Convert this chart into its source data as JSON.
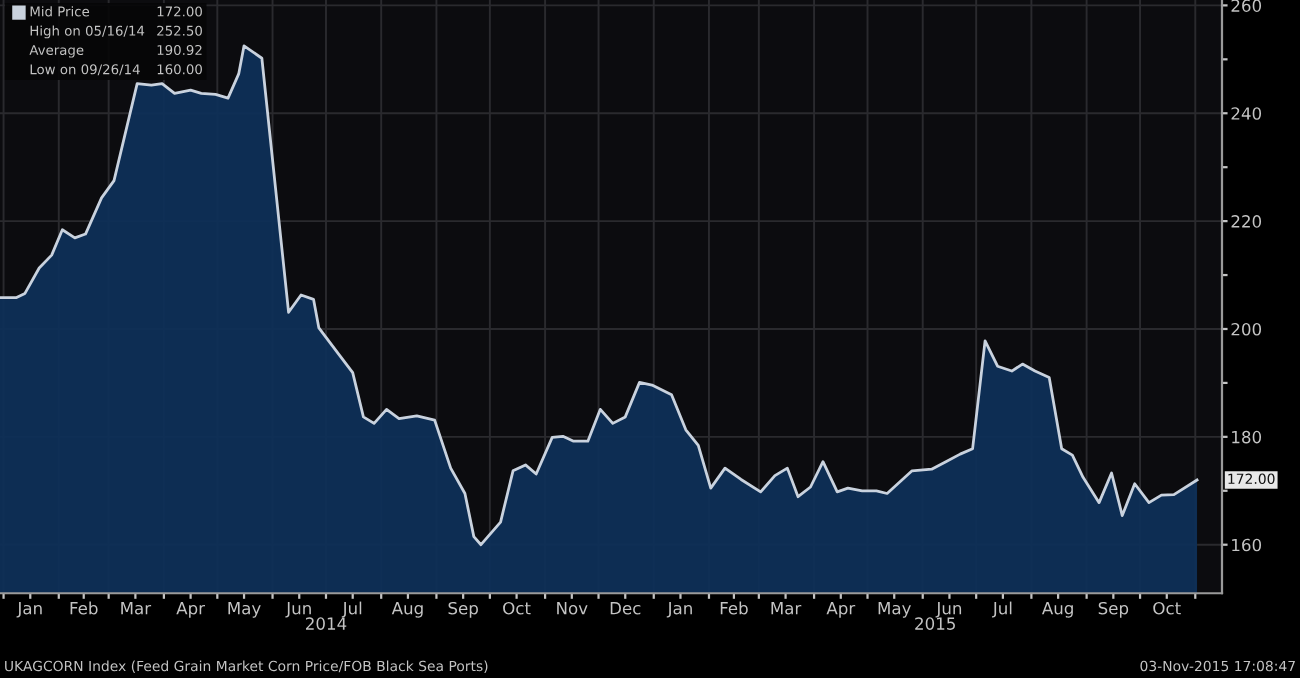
{
  "chart_data": {
    "type": "area",
    "x": [
      "2013-12-30",
      "2014-01-08",
      "2014-01-13",
      "2014-01-21",
      "2014-01-28",
      "2014-02-03",
      "2014-02-10",
      "2014-02-16",
      "2014-02-25",
      "2014-03-04",
      "2014-03-17",
      "2014-03-25",
      "2014-03-31",
      "2014-04-07",
      "2014-04-16",
      "2014-04-22",
      "2014-04-30",
      "2014-05-07",
      "2014-05-13",
      "2014-05-16",
      "2014-05-26",
      "2014-06-10",
      "2014-06-17",
      "2014-06-24",
      "2014-06-27",
      "2014-07-08",
      "2014-07-16",
      "2014-07-22",
      "2014-07-28",
      "2014-08-04",
      "2014-08-11",
      "2014-08-21",
      "2014-08-31",
      "2014-09-09",
      "2014-09-17",
      "2014-09-22",
      "2014-09-26",
      "2014-10-07",
      "2014-10-14",
      "2014-10-21",
      "2014-10-27",
      "2014-11-05",
      "2014-11-11",
      "2014-11-17",
      "2014-11-25",
      "2014-12-02",
      "2014-12-09",
      "2014-12-16",
      "2014-12-24",
      "2014-12-31",
      "2015-01-11",
      "2015-01-19",
      "2015-01-26",
      "2015-02-02",
      "2015-02-10",
      "2015-02-19",
      "2015-03-02",
      "2015-03-10",
      "2015-03-17",
      "2015-03-23",
      "2015-03-30",
      "2015-04-06",
      "2015-04-14",
      "2015-04-20",
      "2015-04-28",
      "2015-05-06",
      "2015-05-12",
      "2015-05-20",
      "2015-05-26",
      "2015-06-06",
      "2015-06-14",
      "2015-06-22",
      "2015-06-29",
      "2015-07-06",
      "2015-07-13",
      "2015-07-21",
      "2015-07-27",
      "2015-08-03",
      "2015-08-11",
      "2015-08-18",
      "2015-08-24",
      "2015-08-30",
      "2015-09-08",
      "2015-09-15",
      "2015-09-21",
      "2015-09-28",
      "2015-10-06",
      "2015-10-13",
      "2015-10-20",
      "2015-11-02"
    ],
    "series": [
      {
        "name": "Mid Price",
        "color": "#c9d2de",
        "values": [
          205.8,
          205.8,
          206.6,
          211.3,
          213.7,
          218.4,
          216.9,
          217.6,
          224.3,
          227.5,
          245.5,
          245.2,
          245.5,
          243.7,
          244.3,
          243.7,
          243.5,
          242.8,
          247.3,
          252.5,
          250.2,
          203.1,
          206.3,
          205.5,
          200.2,
          195.4,
          191.9,
          183.7,
          182.5,
          185.1,
          183.4,
          183.9,
          183.1,
          174.2,
          169.5,
          161.5,
          160.0,
          164.2,
          173.7,
          174.8,
          173.1,
          179.9,
          180.1,
          179.2,
          179.2,
          185.1,
          182.5,
          183.7,
          190.1,
          189.6,
          187.8,
          181.3,
          178.4,
          170.5,
          174.2,
          172.1,
          169.8,
          172.8,
          174.2,
          168.9,
          170.7,
          175.4,
          169.8,
          170.5,
          170.0,
          170.0,
          169.5,
          171.9,
          173.7,
          174.0,
          175.4,
          176.8,
          177.8,
          197.8,
          193.1,
          192.2,
          193.5,
          192.2,
          191.0,
          177.8,
          176.6,
          172.5,
          167.8,
          173.3,
          165.4,
          171.3,
          167.8,
          169.2,
          169.3,
          172.0
        ]
      }
    ],
    "xlim": [
      "2013-12-30",
      "2015-11-16"
    ],
    "xticks": [
      {
        "value": "2014-01-01",
        "label": null
      },
      {
        "value": "2014-01-16",
        "label": "Jan"
      },
      {
        "value": "2014-02-01",
        "label": null
      },
      {
        "value": "2014-02-15",
        "label": "Feb"
      },
      {
        "value": "2014-03-01",
        "label": null
      },
      {
        "value": "2014-03-16",
        "label": "Mar"
      },
      {
        "value": "2014-04-01",
        "label": null
      },
      {
        "value": "2014-04-16",
        "label": "Apr"
      },
      {
        "value": "2014-05-01",
        "label": null
      },
      {
        "value": "2014-05-16",
        "label": "May"
      },
      {
        "value": "2014-06-01",
        "label": null
      },
      {
        "value": "2014-06-16",
        "label": "Jun"
      },
      {
        "value": "2014-07-01",
        "label": null
      },
      {
        "value": "2014-07-16",
        "label": "Jul"
      },
      {
        "value": "2014-08-01",
        "label": null
      },
      {
        "value": "2014-08-16",
        "label": "Aug"
      },
      {
        "value": "2014-09-01",
        "label": null
      },
      {
        "value": "2014-09-16",
        "label": "Sep"
      },
      {
        "value": "2014-10-01",
        "label": null
      },
      {
        "value": "2014-10-16",
        "label": "Oct"
      },
      {
        "value": "2014-11-01",
        "label": null
      },
      {
        "value": "2014-11-16",
        "label": "Nov"
      },
      {
        "value": "2014-12-01",
        "label": null
      },
      {
        "value": "2014-12-16",
        "label": "Dec"
      },
      {
        "value": "2015-01-01",
        "label": null
      },
      {
        "value": "2015-01-16",
        "label": "Jan"
      },
      {
        "value": "2015-02-01",
        "label": null
      },
      {
        "value": "2015-02-15",
        "label": "Feb"
      },
      {
        "value": "2015-03-01",
        "label": null
      },
      {
        "value": "2015-03-16",
        "label": "Mar"
      },
      {
        "value": "2015-04-01",
        "label": null
      },
      {
        "value": "2015-04-16",
        "label": "Apr"
      },
      {
        "value": "2015-05-01",
        "label": null
      },
      {
        "value": "2015-05-16",
        "label": "May"
      },
      {
        "value": "2015-06-01",
        "label": null
      },
      {
        "value": "2015-06-16",
        "label": "Jun"
      },
      {
        "value": "2015-07-01",
        "label": null
      },
      {
        "value": "2015-07-16",
        "label": "Jul"
      },
      {
        "value": "2015-08-01",
        "label": null
      },
      {
        "value": "2015-08-16",
        "label": "Aug"
      },
      {
        "value": "2015-09-01",
        "label": null
      },
      {
        "value": "2015-09-16",
        "label": "Sep"
      },
      {
        "value": "2015-10-01",
        "label": null
      },
      {
        "value": "2015-10-16",
        "label": "Oct"
      },
      {
        "value": "2015-11-01",
        "label": null
      }
    ],
    "x2lim": [
      "2013-12-30",
      "2015-11-16"
    ],
    "x2ticks": [
      {
        "value": "2014-07-01",
        "label": "2014"
      },
      {
        "value": "2015-06-08",
        "label": "2015"
      }
    ],
    "ylim": [
      151,
      261
    ],
    "yticks": [
      160,
      {
        "value": 170,
        "label": null
      },
      180,
      {
        "value": 190,
        "label": null
      },
      200,
      {
        "value": 210,
        "label": null
      },
      220,
      {
        "value": 230,
        "label": null
      },
      240,
      {
        "value": 250,
        "label": null
      },
      260
    ],
    "grid": true,
    "legend": "top left",
    "annotations": [
      "172.00",
      "High on 05/16/14",
      "252.50",
      "Average",
      "190.92",
      "Low on 09/26/14",
      "160.00",
      {
        "text": "172.00",
        "x": "2015-11-02",
        "y": 172
      },
      "UKAGCORN Index (Feed Grain Market Corn Price/FOB Black Sea Ports)",
      "03-Nov-2015 17:08:47"
    ]
  }
}
